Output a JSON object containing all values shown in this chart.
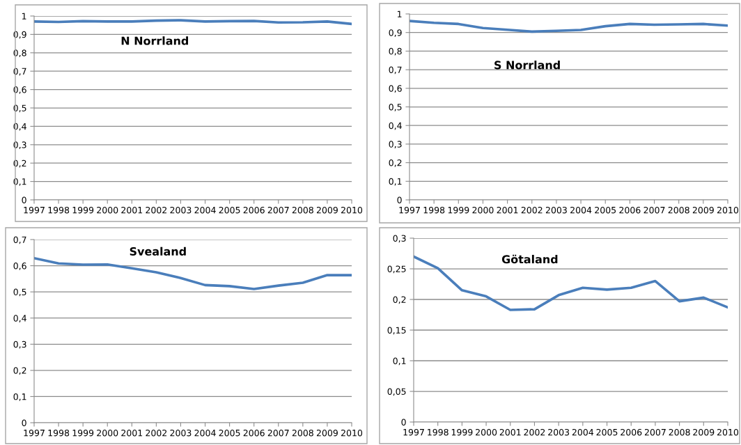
{
  "chart_data": [
    {
      "type": "line",
      "title": "N Norrland",
      "categories": [
        "1997",
        "1998",
        "1999",
        "2000",
        "2001",
        "2002",
        "2003",
        "2004",
        "2005",
        "2006",
        "2007",
        "2008",
        "2009",
        "2010"
      ],
      "color": "#4a7ebb",
      "values": [
        0.97,
        0.968,
        0.972,
        0.97,
        0.97,
        0.975,
        0.977,
        0.97,
        0.972,
        0.973,
        0.965,
        0.966,
        0.97,
        0.957
      ],
      "ylim": [
        0,
        1
      ],
      "yticks": [
        0,
        {
          "value": 0.1,
          "label": "0,1"
        },
        {
          "value": 0.2,
          "label": "0,2"
        },
        {
          "value": 0.3,
          "label": "0,3"
        },
        {
          "value": 0.4,
          "label": "0,4"
        },
        {
          "value": 0.5,
          "label": "0,5"
        },
        {
          "value": 0.6,
          "label": "0,6"
        },
        {
          "value": 0.7,
          "label": "0,7"
        },
        {
          "value": 0.8,
          "label": "0,8"
        },
        {
          "value": 0.9,
          "label": "0,9"
        },
        1
      ],
      "grid": "y"
    },
    {
      "type": "line",
      "title": "S Norrland",
      "categories": [
        "1997",
        "1998",
        "1999",
        "2000",
        "2001",
        "2002",
        "2003",
        "2004",
        "2005",
        "2006",
        "2007",
        "2008",
        "2009",
        "2010"
      ],
      "color": "#4a7ebb",
      "values": [
        0.962,
        0.952,
        0.946,
        0.924,
        0.915,
        0.905,
        0.909,
        0.914,
        0.934,
        0.946,
        0.942,
        0.944,
        0.946,
        0.937
      ],
      "ylim": [
        0,
        1
      ],
      "yticks": [
        0,
        {
          "value": 0.1,
          "label": "0,1"
        },
        {
          "value": 0.2,
          "label": "0,2"
        },
        {
          "value": 0.3,
          "label": "0,3"
        },
        {
          "value": 0.4,
          "label": "0,4"
        },
        {
          "value": 0.5,
          "label": "0,5"
        },
        {
          "value": 0.6,
          "label": "0,6"
        },
        {
          "value": 0.7,
          "label": "0,7"
        },
        {
          "value": 0.8,
          "label": "0,8"
        },
        {
          "value": 0.9,
          "label": "0,9"
        },
        1
      ],
      "grid": "y"
    },
    {
      "type": "line",
      "title": "Svealand",
      "categories": [
        "1997",
        "1998",
        "1999",
        "2000",
        "2001",
        "2002",
        "2003",
        "2004",
        "2005",
        "2006",
        "2007",
        "2008",
        "2009",
        "2010"
      ],
      "color": "#4a7ebb",
      "values": [
        0.629,
        0.609,
        0.604,
        0.605,
        0.59,
        0.575,
        0.553,
        0.526,
        0.522,
        0.511,
        0.524,
        0.535,
        0.564,
        0.564
      ],
      "ylim": [
        0,
        0.7
      ],
      "yticks": [
        0,
        {
          "value": 0.1,
          "label": "0,1"
        },
        {
          "value": 0.2,
          "label": "0,2"
        },
        {
          "value": 0.3,
          "label": "0,3"
        },
        {
          "value": 0.4,
          "label": "0,4"
        },
        {
          "value": 0.5,
          "label": "0,5"
        },
        {
          "value": 0.6,
          "label": "0,6"
        },
        {
          "value": 0.7,
          "label": "0,7"
        }
      ],
      "grid": "y"
    },
    {
      "type": "line",
      "title": "Götaland",
      "categories": [
        "1997",
        "1998",
        "1999",
        "2000",
        "2001",
        "2002",
        "2003",
        "2004",
        "2005",
        "2006",
        "2007",
        "2008",
        "2009",
        "2010"
      ],
      "color": "#4a7ebb",
      "values": [
        0.27,
        0.251,
        0.215,
        0.205,
        0.183,
        0.184,
        0.207,
        0.219,
        0.216,
        0.219,
        0.23,
        0.197,
        0.203,
        0.187
      ],
      "ylim": [
        0,
        0.3
      ],
      "yticks": [
        0,
        {
          "value": 0.05,
          "label": "0,05"
        },
        {
          "value": 0.1,
          "label": "0,1"
        },
        {
          "value": 0.15,
          "label": "0,15"
        },
        {
          "value": 0.2,
          "label": "0,2"
        },
        {
          "value": 0.25,
          "label": "0,25"
        },
        {
          "value": 0.3,
          "label": "0,3"
        }
      ],
      "grid": "y"
    }
  ]
}
